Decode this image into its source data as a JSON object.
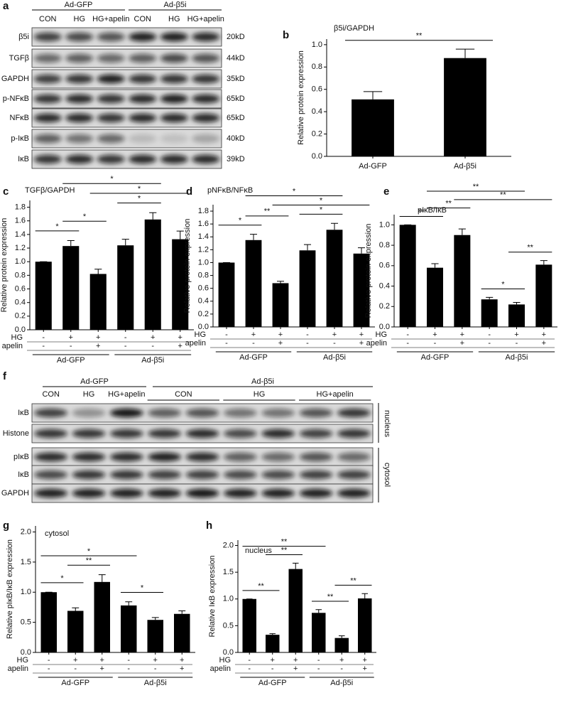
{
  "blot_a": {
    "letter": "a",
    "groups": [
      "Ad-GFP",
      "Ad-β5i"
    ],
    "lane_labels": [
      "CON",
      "HG",
      "HG+apelin",
      "CON",
      "HG",
      "HG+apelin"
    ],
    "rows": [
      "β5i",
      "TGFβ",
      "GAPDH",
      "p-NFκB",
      "NFκB",
      "p-IκB",
      "IκB"
    ],
    "sizes": [
      "20kD",
      "44kD",
      "35kD",
      "65kD",
      "65kD",
      "40kD",
      "39kD"
    ]
  },
  "blot_f": {
    "letter": "f",
    "groups": [
      "Ad-GFP",
      "Ad-β5i"
    ],
    "lane_labels": [
      "CON",
      "HG",
      "HG+apelin",
      "CON",
      "HG",
      "HG+apelin"
    ],
    "rows": [
      "IκB",
      "Histone",
      "pIκB",
      "IκB",
      "GAPDH"
    ],
    "compartments": [
      "nucleus",
      "cytosol"
    ]
  },
  "chart_data": [
    {
      "type": "bar",
      "letter": "b",
      "title": "β5i/GAPDH",
      "y_label": "Relative protein expression",
      "categories": [
        "Ad-GFP",
        "Ad-β5i"
      ],
      "values": [
        0.51,
        0.88
      ],
      "errors": [
        0.07,
        0.08
      ],
      "color": "#000000",
      "ylim": [
        0,
        1.05
      ],
      "yticks": [
        {
          "value": 0,
          "label": "0.0"
        },
        0.2,
        0.4,
        0.6,
        0.8,
        {
          "value": 1,
          "label": "1.0"
        }
      ],
      "comparisons": [
        {
          "bars": [
            0,
            1
          ],
          "label": "**"
        }
      ]
    },
    {
      "type": "bar",
      "letter": "c",
      "title": "TGFβ/GAPDH",
      "y_label": "Relative protein expression",
      "values": [
        1.0,
        1.23,
        0.82,
        1.24,
        1.62,
        1.33
      ],
      "errors": [
        0,
        0.08,
        0.07,
        0.09,
        0.1,
        0.12
      ],
      "color": "#000000",
      "ylim": [
        0,
        1.9
      ],
      "yticks": [
        {
          "value": 0,
          "label": "0.0"
        },
        0.2,
        0.4,
        0.6,
        0.8,
        {
          "value": 1,
          "label": "1.0"
        },
        1.2,
        1.4,
        1.6,
        1.8
      ],
      "condition_rows": [
        {
          "name": "HG",
          "marks": [
            "-",
            "+",
            "+",
            "-",
            "+",
            "+"
          ]
        },
        {
          "name": "apelin",
          "marks": [
            "-",
            "-",
            "+",
            "-",
            "-",
            "+"
          ]
        }
      ],
      "groups": [
        "Ad-GFP",
        "Ad-β5i"
      ],
      "comparisons": [
        {
          "bars": [
            0,
            1
          ],
          "label": "*"
        },
        {
          "bars": [
            1,
            2
          ],
          "label": "*"
        },
        {
          "bars": [
            3,
            4
          ],
          "label": "*"
        },
        {
          "bars": [
            2,
            5
          ],
          "label": "*"
        },
        {
          "bars": [
            1,
            4
          ],
          "label": "*"
        }
      ]
    },
    {
      "type": "bar",
      "letter": "d",
      "title": "pNFκB/NFκB",
      "y_label": "Relative protein expression",
      "values": [
        1.0,
        1.35,
        0.68,
        1.19,
        1.51,
        1.14
      ],
      "errors": [
        0,
        0.09,
        0.03,
        0.09,
        0.1,
        0.09
      ],
      "color": "#000000",
      "ylim": [
        0,
        1.9
      ],
      "yticks": [
        {
          "value": 0,
          "label": "0.0"
        },
        0.2,
        0.4,
        0.6,
        0.8,
        {
          "value": 1,
          "label": "1.0"
        },
        1.2,
        1.4,
        1.6,
        1.8
      ],
      "condition_rows": [
        {
          "name": "HG",
          "marks": [
            "-",
            "+",
            "+",
            "-",
            "+",
            "+"
          ]
        },
        {
          "name": "apelin",
          "marks": [
            "-",
            "-",
            "+",
            "-",
            "-",
            "+"
          ]
        }
      ],
      "groups": [
        "Ad-GFP",
        "Ad-β5i"
      ],
      "comparisons": [
        {
          "bars": [
            0,
            1
          ],
          "label": "*"
        },
        {
          "bars": [
            1,
            2
          ],
          "label": "**"
        },
        {
          "bars": [
            3,
            4
          ],
          "label": "*"
        },
        {
          "bars": [
            2,
            5
          ],
          "label": "*"
        },
        {
          "bars": [
            1,
            4
          ],
          "label": "*"
        }
      ]
    },
    {
      "type": "bar",
      "letter": "e",
      "title": "pIκB/IκB",
      "y_label": "Relative protein expression",
      "values": [
        1.0,
        0.58,
        0.9,
        0.27,
        0.22,
        0.61
      ],
      "errors": [
        0,
        0.04,
        0.06,
        0.02,
        0.02,
        0.04
      ],
      "color": "#000000",
      "ylim": [
        0,
        1.1
      ],
      "yticks": [
        {
          "value": 0,
          "label": "0.0"
        },
        0.2,
        0.4,
        0.6,
        0.8,
        {
          "value": 1,
          "label": "1.0"
        }
      ],
      "condition_rows": [
        {
          "name": "HG",
          "marks": [
            "-",
            "+",
            "+",
            "-",
            "+",
            "+"
          ]
        },
        {
          "name": "apelin",
          "marks": [
            "-",
            "-",
            "+",
            "-",
            "-",
            "+"
          ]
        }
      ],
      "groups": [
        "Ad-GFP",
        "Ad-β5i"
      ],
      "comparisons": [
        {
          "bars": [
            0,
            1
          ],
          "label": "**"
        },
        {
          "bars": [
            1,
            2
          ],
          "label": "**"
        },
        {
          "bars": [
            3,
            4
          ],
          "label": "*"
        },
        {
          "bars": [
            4,
            5
          ],
          "label": "**"
        },
        {
          "bars": [
            2,
            5
          ],
          "label": "**"
        },
        {
          "bars": [
            1,
            4
          ],
          "label": "**"
        }
      ]
    },
    {
      "type": "bar",
      "letter": "g",
      "title": "cytosol",
      "y_label": "Relative pIκB/IκB expression",
      "values": [
        1.0,
        0.69,
        1.17,
        0.78,
        0.54,
        0.64
      ],
      "errors": [
        0,
        0.05,
        0.12,
        0.06,
        0.04,
        0.05
      ],
      "color": "#000000",
      "ylim": [
        0,
        2.1
      ],
      "yticks": [
        {
          "value": 0,
          "label": "0.0"
        },
        0.5,
        {
          "value": 1,
          "label": "1.0"
        },
        1.5,
        {
          "value": 2,
          "label": "2.0"
        }
      ],
      "condition_rows": [
        {
          "name": "HG",
          "marks": [
            "-",
            "+",
            "+",
            "-",
            "+",
            "+"
          ]
        },
        {
          "name": "apelin",
          "marks": [
            "-",
            "-",
            "+",
            "-",
            "-",
            "+"
          ]
        }
      ],
      "groups": [
        "Ad-GFP",
        "Ad-β5i"
      ],
      "comparisons": [
        {
          "bars": [
            0,
            1
          ],
          "label": "*"
        },
        {
          "bars": [
            1,
            2
          ],
          "label": "**"
        },
        {
          "bars": [
            3,
            4
          ],
          "label": "*"
        },
        {
          "bars": [
            0,
            3
          ],
          "label": "*"
        }
      ]
    },
    {
      "type": "bar",
      "letter": "h",
      "title": "nucleus",
      "y_label": "Relative IκB expression",
      "values": [
        1.0,
        0.33,
        1.56,
        0.74,
        0.27,
        1.01
      ],
      "errors": [
        0,
        0.02,
        0.11,
        0.06,
        0.04,
        0.09
      ],
      "color": "#000000",
      "ylim": [
        0,
        2.1
      ],
      "yticks": [
        {
          "value": 0,
          "label": "0.0"
        },
        0.5,
        {
          "value": 1,
          "label": "1.0"
        },
        1.5,
        {
          "value": 2,
          "label": "2.0"
        }
      ],
      "condition_rows": [
        {
          "name": "HG",
          "marks": [
            "-",
            "+",
            "+",
            "-",
            "+",
            "+"
          ]
        },
        {
          "name": "apelin",
          "marks": [
            "-",
            "-",
            "+",
            "-",
            "-",
            "+"
          ]
        }
      ],
      "groups": [
        "Ad-GFP",
        "Ad-β5i"
      ],
      "comparisons": [
        {
          "bars": [
            0,
            1
          ],
          "label": "**"
        },
        {
          "bars": [
            1,
            2
          ],
          "label": "**"
        },
        {
          "bars": [
            3,
            4
          ],
          "label": "**"
        },
        {
          "bars": [
            4,
            5
          ],
          "label": "**"
        },
        {
          "bars": [
            0,
            3
          ],
          "label": "**"
        }
      ]
    }
  ]
}
